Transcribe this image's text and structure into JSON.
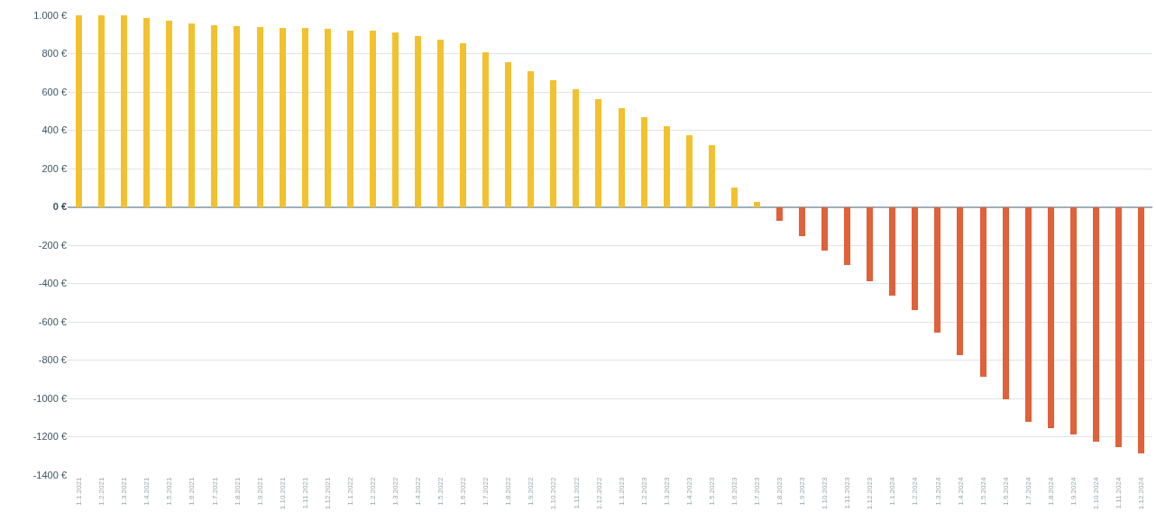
{
  "chart_data": {
    "type": "bar",
    "categories": [
      "1.1.2021",
      "1.2.2021",
      "1.3.2021",
      "1.4.2021",
      "1.5.2021",
      "1.6.2021",
      "1.7.2021",
      "1.8.2021",
      "1.9.2021",
      "1.10.2021",
      "1.11.2021",
      "1.12.2021",
      "1.1.2022",
      "1.2.2022",
      "1.3.2022",
      "1.4.2022",
      "1.5.2022",
      "1.6.2022",
      "1.7.2022",
      "1.8.2022",
      "1.9.2022",
      "1.10.2022",
      "1.11.2022",
      "1.12.2022",
      "1.1.2023",
      "1.2.2023",
      "1.3.2023",
      "1.4.2023",
      "1.5.2023",
      "1.6.2023",
      "1.7.2023",
      "1.8.2023",
      "1.9.2023",
      "1.10.2023",
      "1.11.2023",
      "1.12.2023",
      "1.1.2024",
      "1.2.2024",
      "1.3.2024",
      "1.4.2024",
      "1.5.2024",
      "1.6.2024",
      "1.7.2024",
      "1.8.2024",
      "1.9.2024",
      "1.10.2024",
      "1.11.2024",
      "1.12.2024"
    ],
    "values": [
      1000,
      1000,
      1000,
      984,
      972,
      960,
      950,
      944,
      940,
      936,
      932,
      928,
      922,
      918,
      912,
      892,
      872,
      856,
      805,
      757,
      709,
      663,
      612,
      561,
      516,
      467,
      419,
      372,
      323,
      102,
      26,
      -71,
      -154,
      -230,
      -303,
      -386,
      -463,
      -540,
      -656,
      -772,
      -888,
      -1003,
      -1124,
      -1153,
      -1186,
      -1225,
      -1256,
      -1288
    ],
    "colors": [
      "#f2c12e",
      "#f2c12e",
      "#f2c12e",
      "#f2c12e",
      "#f2c12e",
      "#f2c12e",
      "#f2c12e",
      "#f2c12e",
      "#f2c12e",
      "#f2c12e",
      "#f2c12e",
      "#f2c12e",
      "#f2c12e",
      "#f2c12e",
      "#f2c12e",
      "#f2c12e",
      "#f2c12e",
      "#f2c12e",
      "#f2c12e",
      "#f2c12e",
      "#f2c12e",
      "#f2c12e",
      "#f2c12e",
      "#f2c12e",
      "#f2c12e",
      "#f2c12e",
      "#f2c12e",
      "#f2c12e",
      "#f2c12e",
      "#f2c12e",
      "#f2c12e",
      "#e0613a",
      "#e0613a",
      "#e0613a",
      "#e0613a",
      "#e0613a",
      "#e0613a",
      "#e0613a",
      "#e0613a",
      "#e0613a",
      "#e0613a",
      "#e0613a",
      "#e0613a",
      "#e0613a",
      "#e0613a",
      "#e0613a",
      "#e0613a",
      "#e0613a"
    ],
    "ylim": [
      -1400,
      1000
    ],
    "yticks": [
      {
        "value": 1000,
        "label": "1.000 €"
      },
      {
        "value": 800,
        "label": "800 €"
      },
      {
        "value": 600,
        "label": "600 €"
      },
      {
        "value": 400,
        "label": "400 €"
      },
      {
        "value": 200,
        "label": "200 €"
      },
      {
        "value": 0,
        "label": "0 €"
      },
      {
        "value": -200,
        "label": "-200 €"
      },
      {
        "value": -400,
        "label": "-400 €"
      },
      {
        "value": -600,
        "label": "-600 €"
      },
      {
        "value": -800,
        "label": "-800 €"
      },
      {
        "value": -1000,
        "label": "-1000 €"
      },
      {
        "value": -1200,
        "label": "-1200 €"
      },
      {
        "value": -1400,
        "label": "-1400 €"
      }
    ],
    "grid": "y"
  }
}
